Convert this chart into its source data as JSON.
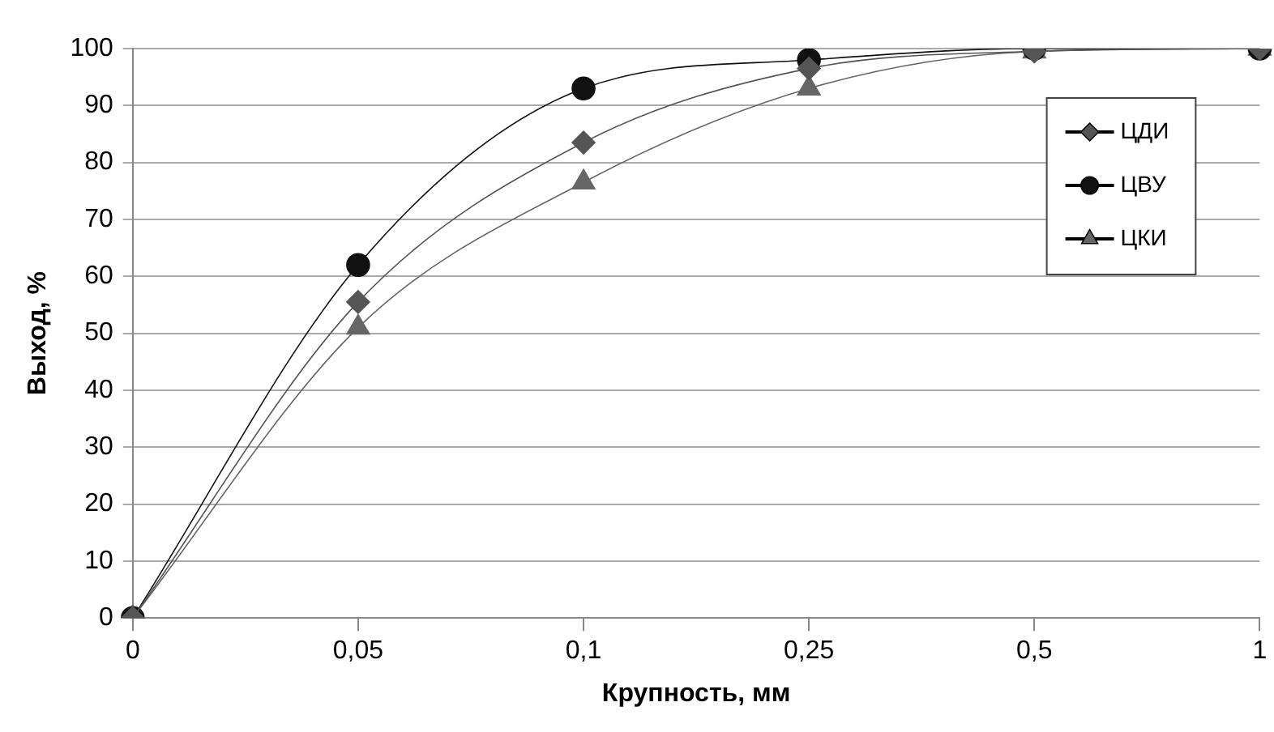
{
  "chart_data": {
    "type": "line",
    "xlabel": "Крупность, мм",
    "ylabel": "Выход, %",
    "categories": [
      "0",
      "0,05",
      "0,1",
      "0,25",
      "0,5",
      "1"
    ],
    "series": [
      {
        "name": "ЦДИ",
        "color": "#555555",
        "marker": "diamond",
        "values": [
          0,
          55.5,
          83.5,
          96.5,
          99.5,
          100
        ]
      },
      {
        "name": "ЦВУ",
        "color": "#111111",
        "marker": "circle",
        "values": [
          0,
          62,
          93,
          98,
          100,
          100
        ]
      },
      {
        "name": "ЦКИ",
        "color": "#666666",
        "marker": "triangle",
        "values": [
          0,
          51,
          76.5,
          93,
          99.5,
          100
        ]
      }
    ],
    "ylim": [
      0,
      100
    ],
    "yticks": [
      0,
      10,
      20,
      30,
      40,
      50,
      60,
      70,
      80,
      90,
      100
    ],
    "grid": "y",
    "legend": "right",
    "line_style": "solid"
  }
}
